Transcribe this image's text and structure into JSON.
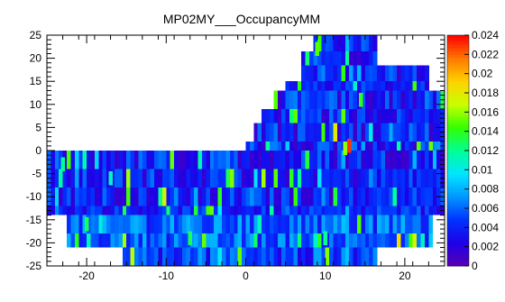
{
  "chart_data": {
    "type": "heatmap",
    "title": "MP02MY___OccupancyMM",
    "xlabel": "",
    "ylabel": "",
    "xlim": [
      -25,
      25
    ],
    "ylim": [
      -25,
      25
    ],
    "x_ticks": [
      "-20",
      "-10",
      "0",
      "10",
      "20"
    ],
    "x_tick_values": [
      -20,
      -10,
      0,
      10,
      20
    ],
    "y_ticks": [
      "-25",
      "-20",
      "-15",
      "-10",
      "-5",
      "0",
      "5",
      "10",
      "15",
      "20",
      "25"
    ],
    "y_tick_values": [
      -25,
      -20,
      -15,
      -10,
      -5,
      0,
      5,
      10,
      15,
      20,
      25
    ],
    "z_range": [
      0,
      0.024
    ],
    "z_ticks": [
      "0",
      "0.002",
      "0.004",
      "0.006",
      "0.008",
      "0.01",
      "0.012",
      "0.014",
      "0.016",
      "0.018",
      "0.02",
      "0.022",
      "0.024"
    ],
    "z_tick_values": [
      0,
      0.002,
      0.004,
      0.006,
      0.008,
      0.01,
      0.012,
      0.014,
      0.016,
      0.018,
      0.02,
      0.022,
      0.024
    ],
    "palette": [
      "#5a00b4",
      "#1e00e6",
      "#0032ff",
      "#0096ff",
      "#00e6ff",
      "#00ff96",
      "#32ff00",
      "#c8ff00",
      "#ffd200",
      "#ff7800",
      "#ff0000"
    ],
    "grid": false,
    "regions": [
      {
        "name": "band-22-25",
        "x": [
          8.5,
          16.5
        ],
        "y": [
          21.5,
          25
        ],
        "base": 0.004,
        "var": 0.005
      },
      {
        "name": "band-19-22",
        "x": [
          7.0,
          16.5
        ],
        "y": [
          18.5,
          21.5
        ],
        "base": 0.004,
        "var": 0.005
      },
      {
        "name": "band-15-19",
        "x": [
          7.0,
          23.0
        ],
        "y": [
          15.0,
          18.5
        ],
        "base": 0.004,
        "var": 0.005
      },
      {
        "name": "band-13-15",
        "x": [
          5.0,
          23.0
        ],
        "y": [
          13.0,
          15.0
        ],
        "base": 0.004,
        "var": 0.004
      },
      {
        "name": "band-9-13",
        "x": [
          3.5,
          25.0
        ],
        "y": [
          9.0,
          13.0
        ],
        "base": 0.004,
        "var": 0.006
      },
      {
        "name": "band-6-9",
        "x": [
          2.0,
          25.0
        ],
        "y": [
          6.0,
          9.0
        ],
        "base": 0.004,
        "var": 0.005
      },
      {
        "name": "band-2-6",
        "x": [
          1.0,
          25.0
        ],
        "y": [
          2.0,
          6.0
        ],
        "base": 0.004,
        "var": 0.006
      },
      {
        "name": "band-0-2",
        "x": [
          0.0,
          25.0
        ],
        "y": [
          0.0,
          2.0
        ],
        "base": 0.004,
        "var": 0.008
      },
      {
        "name": "band-m4-0",
        "x": [
          -25.0,
          25.0
        ],
        "y": [
          -4.0,
          0.0
        ],
        "base": 0.004,
        "var": 0.006
      },
      {
        "name": "band-m8-m4",
        "x": [
          -25.0,
          25.0
        ],
        "y": [
          -8.0,
          -4.0
        ],
        "base": 0.004,
        "var": 0.005
      },
      {
        "name": "band-m12-m8",
        "x": [
          -25.0,
          25.0
        ],
        "y": [
          -12.0,
          -8.0
        ],
        "base": 0.004,
        "var": 0.005
      },
      {
        "name": "band-m14-m12",
        "x": [
          -25.0,
          25.0
        ],
        "y": [
          -14.0,
          -12.0
        ],
        "base": 0.004,
        "var": 0.004
      },
      {
        "name": "band-m18-m14",
        "x": [
          -22.5,
          23.5
        ],
        "y": [
          -18.0,
          -14.0
        ],
        "base": 0.006,
        "var": 0.005
      },
      {
        "name": "band-m21-m18",
        "x": [
          -22.5,
          23.5
        ],
        "y": [
          -21.0,
          -18.0
        ],
        "base": 0.006,
        "var": 0.005
      },
      {
        "name": "band-m25-m21",
        "x": [
          -15.5,
          16.5
        ],
        "y": [
          -25.0,
          -21.0
        ],
        "base": 0.005,
        "var": 0.006
      }
    ],
    "hotspots": [
      {
        "x": 13.0,
        "y": 1.0,
        "value": 0.023
      },
      {
        "x": 9.0,
        "y": 22.0,
        "value": 0.015
      },
      {
        "x": 14.5,
        "y": 11.0,
        "value": 0.014
      },
      {
        "x": 12.5,
        "y": 0.5,
        "value": 0.016
      },
      {
        "x": -7.0,
        "y": -19.0,
        "value": 0.013
      },
      {
        "x": -20.0,
        "y": -16.0,
        "value": 0.013
      },
      {
        "x": 10.0,
        "y": -19.0,
        "value": 0.012
      },
      {
        "x": -17.0,
        "y": -6.0,
        "value": 0.011
      },
      {
        "x": -23.0,
        "y": -3.0,
        "value": 0.012
      }
    ]
  }
}
